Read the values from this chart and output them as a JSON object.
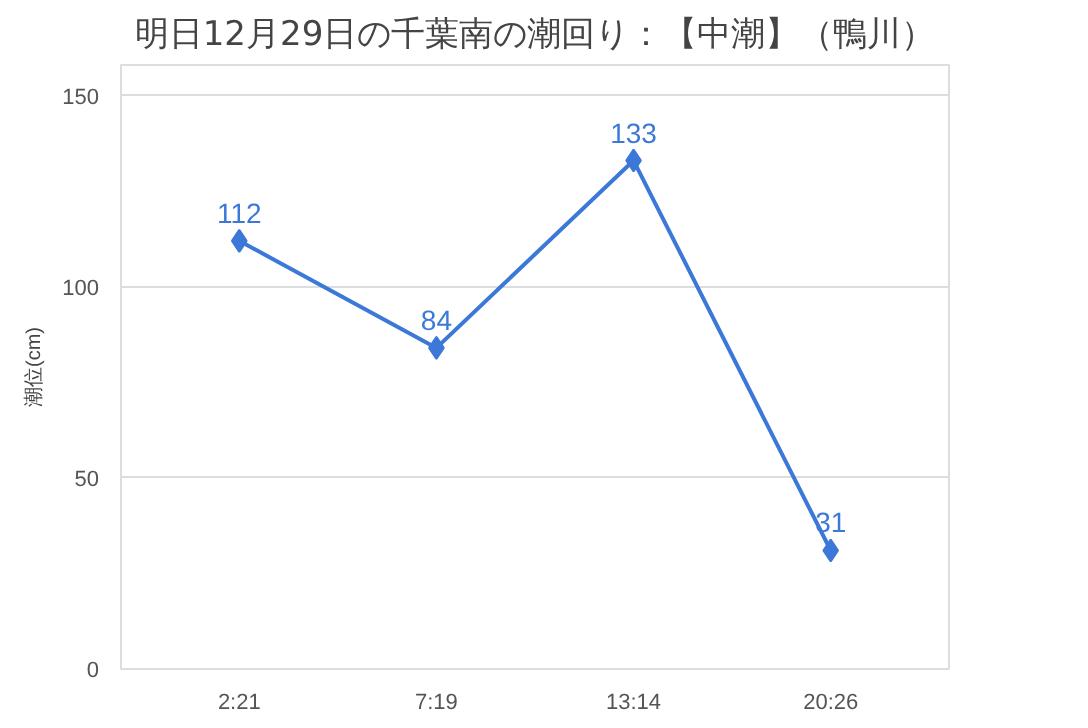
{
  "chart_data": {
    "type": "line",
    "title": "明日12月29日の千葉南の潮回り：【中潮】（鴨川）",
    "ylabel": "潮位(cm)",
    "categories": [
      "2:21",
      "7:19",
      "13:14",
      "20:26"
    ],
    "series": [
      {
        "color": "#3c78d8",
        "values": [
          112,
          84,
          133,
          31
        ]
      }
    ],
    "ylim": [
      0,
      158
    ],
    "yticks": [
      0,
      50,
      100,
      150
    ],
    "grid": "y",
    "marker": "diamond",
    "line_style": "solid",
    "data_labels": true
  }
}
